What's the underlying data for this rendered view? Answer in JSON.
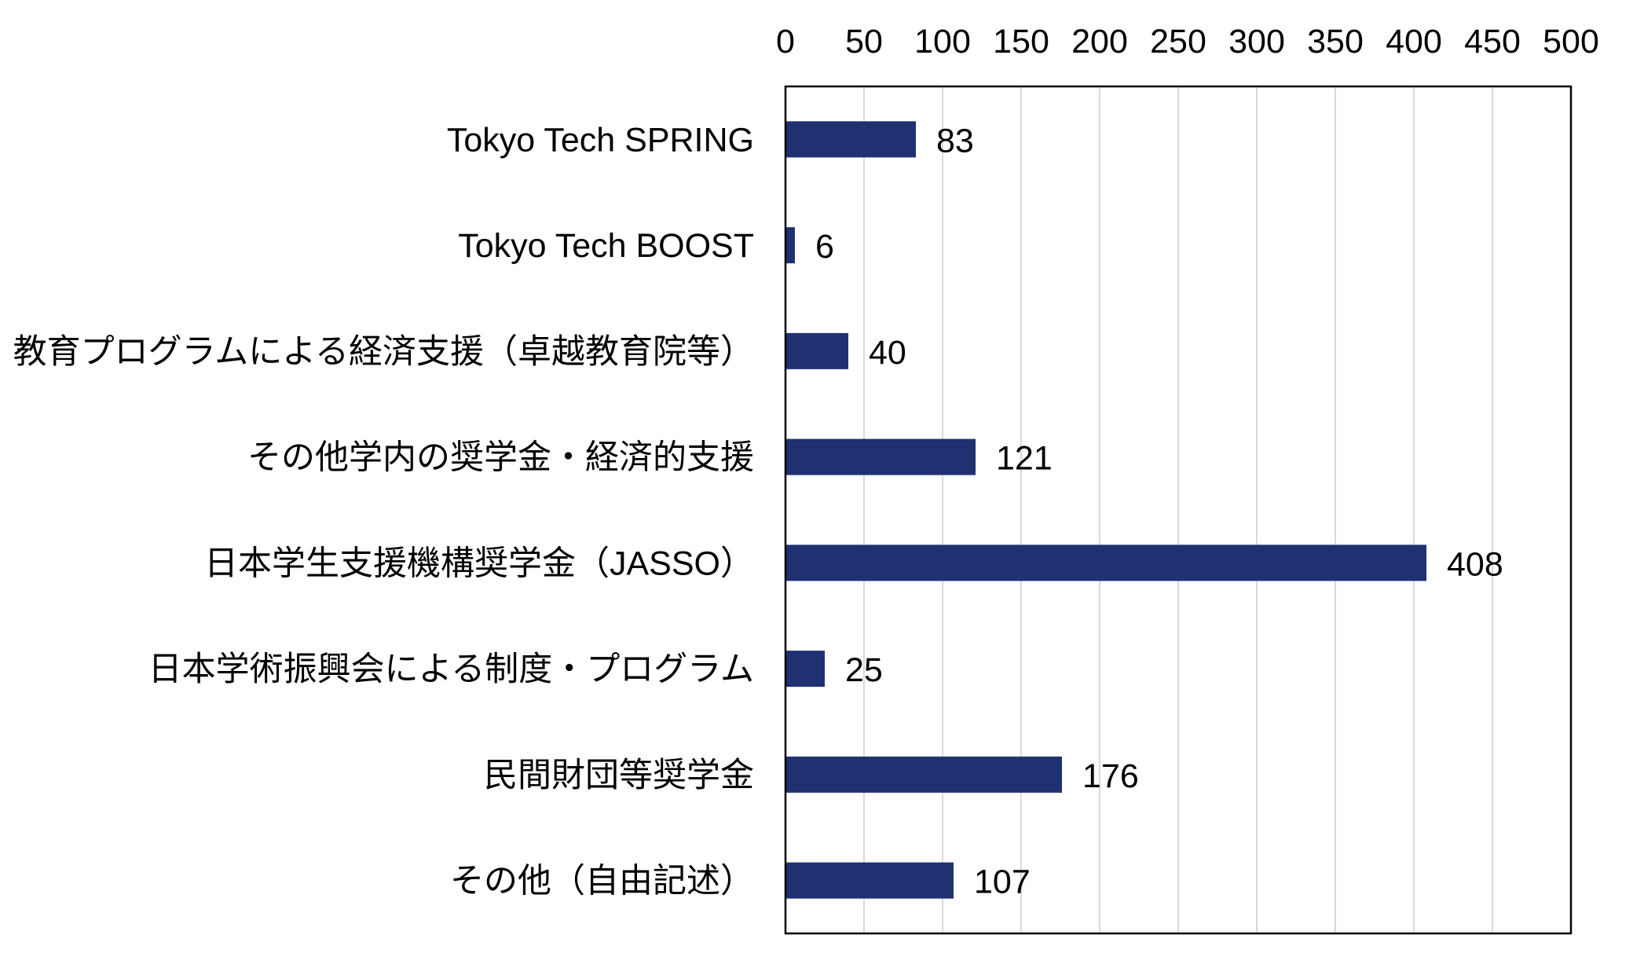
{
  "chart_data": {
    "type": "bar",
    "orientation": "horizontal",
    "categories": [
      "Tokyo Tech SPRING",
      "Tokyo Tech BOOST",
      "教育プログラムによる経済支援（卓越教育院等）",
      "その他学内の奨学金・経済的支援",
      "日本学生支援機構奨学金（JASSO）",
      "日本学術振興会による制度・プログラム",
      "民間財団等奨学金",
      "その他（自由記述）"
    ],
    "values": [
      83,
      6,
      40,
      121,
      408,
      25,
      176,
      107
    ],
    "value_labels": [
      "83",
      "6",
      "40",
      "121",
      "408",
      "25",
      "176",
      "107"
    ],
    "xlim": [
      0,
      500
    ],
    "xticks": [
      "0",
      "50",
      "100",
      "150",
      "200",
      "250",
      "300",
      "350",
      "400",
      "450",
      "500"
    ],
    "xtick_values": [
      0,
      50,
      100,
      150,
      200,
      250,
      300,
      350,
      400,
      450,
      500
    ],
    "x_axis_position": "top",
    "grid": true,
    "title": "",
    "xlabel": "",
    "ylabel": "",
    "colors": {
      "bar": "#1f3170",
      "grid": "#d9d9d9",
      "frame": "#000000"
    }
  }
}
